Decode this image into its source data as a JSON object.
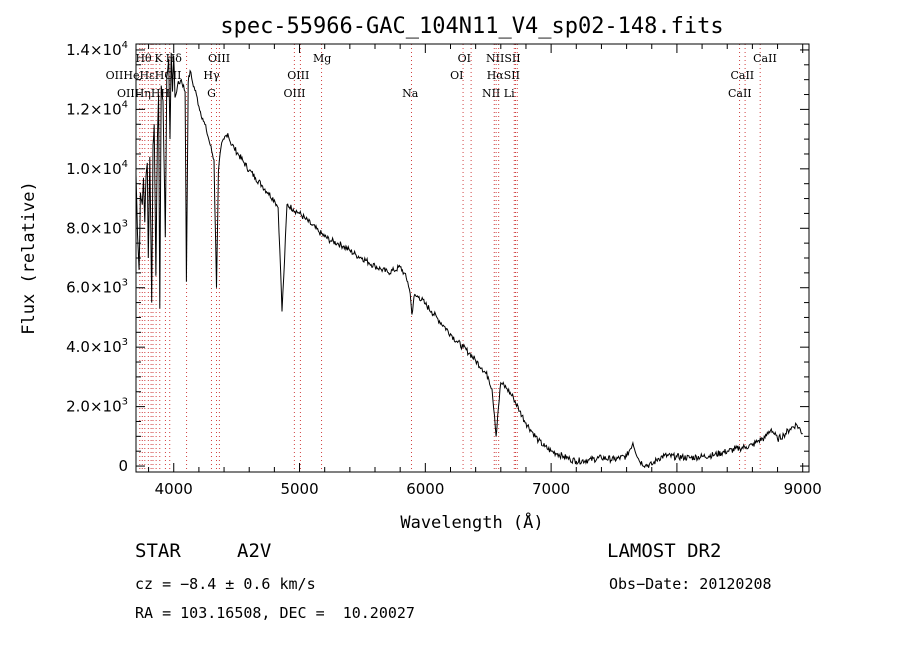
{
  "chart_data": {
    "type": "line",
    "title": "spec-55966-GAC_104N11_V4_sp02-148.fits",
    "xlabel": "Wavelength (Å)",
    "ylabel": "Flux (relative)",
    "xlim": [
      3700,
      9050
    ],
    "ylim": [
      -200,
      14200
    ],
    "x_ticks": [
      {
        "value": 4000,
        "label": "4000"
      },
      {
        "value": 5000,
        "label": "5000"
      },
      {
        "value": 6000,
        "label": "6000"
      },
      {
        "value": 7000,
        "label": "7000"
      },
      {
        "value": 8000,
        "label": "8000"
      },
      {
        "value": 9000,
        "label": "9000"
      }
    ],
    "y_ticks": [
      {
        "value": 0,
        "mant": "0",
        "exp": ""
      },
      {
        "value": 2000,
        "mant": "2.0×10",
        "exp": "3"
      },
      {
        "value": 4000,
        "mant": "4.0×10",
        "exp": "3"
      },
      {
        "value": 6000,
        "mant": "6.0×10",
        "exp": "3"
      },
      {
        "value": 8000,
        "mant": "8.0×10",
        "exp": "3"
      },
      {
        "value": 10000,
        "mant": "1.0×10",
        "exp": "4"
      },
      {
        "value": 12000,
        "mant": "1.2×10",
        "exp": "4"
      },
      {
        "value": 14000,
        "mant": "1.4×10",
        "exp": "4"
      }
    ],
    "series": [
      {
        "x": [
          3700,
          3712,
          3725,
          3735,
          3750,
          3760,
          3770,
          3780,
          3790,
          3798,
          3810,
          3825,
          3835,
          3845,
          3858,
          3870,
          3880,
          3889,
          3900,
          3915,
          3933,
          3945,
          3960,
          3970,
          3980,
          3990,
          4000,
          4010,
          4030,
          4060,
          4090,
          4101,
          4115,
          4130,
          4150,
          4180,
          4200,
          4230,
          4260,
          4290,
          4320,
          4340,
          4355,
          4375,
          4400,
          4430,
          4450,
          4480,
          4520,
          4560,
          4600,
          4650,
          4700,
          4750,
          4800,
          4830,
          4850,
          4861,
          4875,
          4900,
          4950,
          5000,
          5050,
          5100,
          5150,
          5200,
          5250,
          5300,
          5350,
          5400,
          5450,
          5500,
          5550,
          5600,
          5650,
          5700,
          5750,
          5800,
          5830,
          5860,
          5880,
          5893,
          5910,
          5950,
          6000,
          6050,
          6100,
          6150,
          6200,
          6250,
          6300,
          6350,
          6400,
          6450,
          6500,
          6530,
          6550,
          6563,
          6575,
          6600,
          6650,
          6700,
          6750,
          6800,
          6850,
          6900,
          6950,
          7000,
          7050,
          7100,
          7150,
          7200,
          7300,
          7400,
          7500,
          7600,
          7650,
          7700,
          7750,
          7800,
          7850,
          7900,
          8000,
          8100,
          8200,
          8300,
          8400,
          8500,
          8550,
          8600,
          8650,
          8700,
          8750,
          8800,
          8850,
          8900,
          8950,
          9000
        ],
        "y": [
          9800,
          7800,
          6600,
          9200,
          8800,
          9700,
          8200,
          9800,
          10200,
          7000,
          10400,
          5500,
          10800,
          11500,
          6400,
          11000,
          12500,
          5300,
          12800,
          12300,
          7700,
          13100,
          13700,
          11000,
          13900,
          12600,
          13800,
          12400,
          12800,
          13000,
          12600,
          6200,
          12900,
          13300,
          12900,
          12500,
          12100,
          11700,
          11300,
          10800,
          10300,
          6000,
          9900,
          10700,
          11000,
          11200,
          10900,
          10700,
          10450,
          10200,
          9950,
          9700,
          9450,
          9200,
          8950,
          8700,
          6500,
          5200,
          6400,
          8800,
          8650,
          8500,
          8300,
          8100,
          7900,
          7720,
          7580,
          7500,
          7400,
          7250,
          7100,
          7000,
          6850,
          6730,
          6620,
          6520,
          6580,
          6700,
          6500,
          6200,
          5800,
          5100,
          5700,
          5700,
          5450,
          5200,
          4950,
          4700,
          4450,
          4200,
          4000,
          3800,
          3550,
          3300,
          3000,
          2600,
          1700,
          1000,
          1700,
          2800,
          2600,
          2300,
          1850,
          1450,
          1150,
          850,
          650,
          500,
          420,
          320,
          230,
          170,
          200,
          280,
          220,
          330,
          780,
          180,
          30,
          40,
          250,
          350,
          310,
          280,
          320,
          380,
          500,
          600,
          650,
          700,
          860,
          950,
          1250,
          900,
          1050,
          1250,
          1400,
          1100
        ]
      }
    ],
    "lines_dotted": [
      3730,
      3750,
      3770,
      3798,
      3820,
      3835,
      3860,
      3889,
      3934,
      3968,
      4102,
      4300,
      4340,
      4363,
      4959,
      5007,
      5175,
      5890,
      6300,
      6364,
      6548,
      6563,
      6583,
      6707,
      6717,
      6731,
      8498,
      8542,
      8662
    ],
    "line_labels": [
      {
        "x": 3760,
        "row": 0,
        "text": "Hθ"
      },
      {
        "x": 3880,
        "row": 0,
        "text": "K"
      },
      {
        "x": 4000,
        "row": 0,
        "text": "Hδ"
      },
      {
        "x": 4360,
        "row": 0,
        "text": "OIII"
      },
      {
        "x": 5180,
        "row": 0,
        "text": "Mg"
      },
      {
        "x": 6310,
        "row": 0,
        "text": "OI"
      },
      {
        "x": 6620,
        "row": 0,
        "text": "NIISII"
      },
      {
        "x": 8700,
        "row": 0,
        "text": "CaII"
      },
      {
        "x": 3760,
        "row": 1,
        "text": "OIIHeHεHCII"
      },
      {
        "x": 4300,
        "row": 1,
        "text": "Hγ"
      },
      {
        "x": 4990,
        "row": 1,
        "text": "OIII"
      },
      {
        "x": 6250,
        "row": 1,
        "text": "OI"
      },
      {
        "x": 6620,
        "row": 1,
        "text": "HαSII"
      },
      {
        "x": 8520,
        "row": 1,
        "text": "CaII"
      },
      {
        "x": 3760,
        "row": 2,
        "text": "OIIHηHH"
      },
      {
        "x": 4300,
        "row": 2,
        "text": "G"
      },
      {
        "x": 4960,
        "row": 2,
        "text": "OIII"
      },
      {
        "x": 5880,
        "row": 2,
        "text": "Na"
      },
      {
        "x": 6580,
        "row": 2,
        "text": "NII Li"
      },
      {
        "x": 8500,
        "row": 2,
        "text": "CaII"
      }
    ]
  },
  "info": {
    "object_class": "STAR",
    "subclass": "A2V",
    "survey": "LAMOST DR2",
    "cz": "cz = −8.4 ± 0.6 km/s",
    "obs_date": "Obs−Date: 20120208",
    "coords": "RA = 103.16508, DEC =  10.20027"
  },
  "colors": {
    "spectrum": "#000000",
    "marker_lines": "#d04040",
    "axes": "#000000"
  }
}
